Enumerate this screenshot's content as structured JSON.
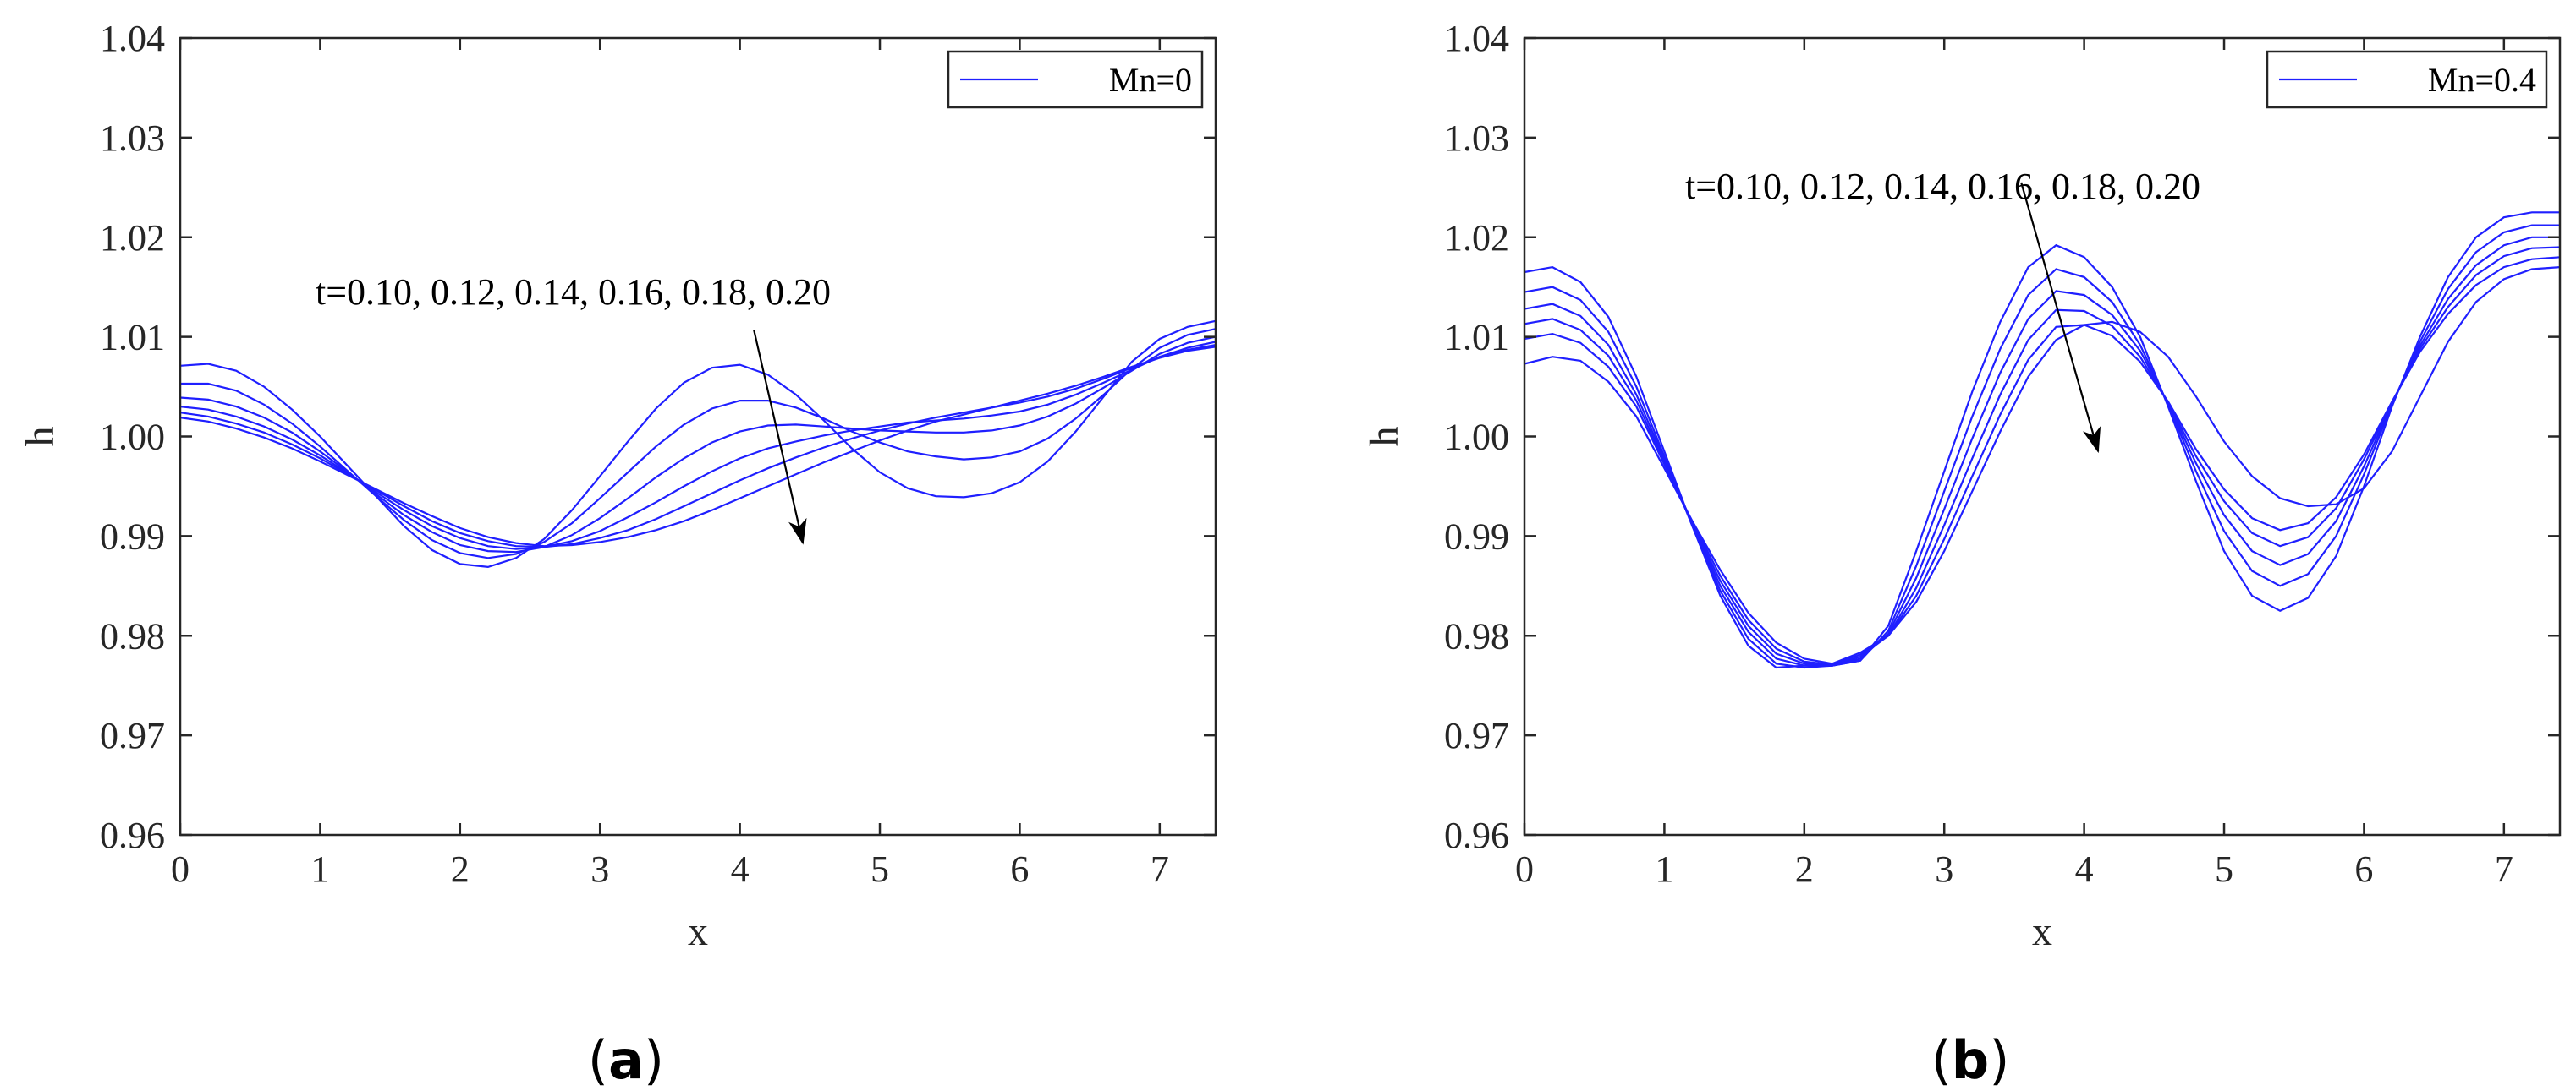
{
  "colors": {
    "line": "#1f1fff",
    "axis": "#262626",
    "annotation": "#000000"
  },
  "chart_data": [
    {
      "type": "line",
      "panel_label": "a",
      "title": "",
      "xlabel": "x",
      "ylabel": "h",
      "xlim": [
        0,
        7.4
      ],
      "ylim": [
        0.96,
        1.04
      ],
      "xticks": [
        "0",
        "1",
        "2",
        "3",
        "4",
        "5",
        "6",
        "7"
      ],
      "yticks": [
        "0.96",
        "0.97",
        "0.98",
        "0.99",
        "1.00",
        "1.01",
        "1.02",
        "1.03",
        "1.04"
      ],
      "legend": {
        "label": "Mn=0",
        "position": "top-right"
      },
      "annotation": {
        "text": "t=0.10, 0.12, 0.14, 0.16, 0.18, 0.20",
        "arrow_from": [
          4.1,
          1.0107
        ],
        "arrow_to": [
          4.45,
          0.9893
        ]
      },
      "x": [
        0,
        0.2,
        0.4,
        0.6,
        0.8,
        1.0,
        1.2,
        1.4,
        1.6,
        1.8,
        2.0,
        2.2,
        2.4,
        2.6,
        2.8,
        3.0,
        3.2,
        3.4,
        3.6,
        3.8,
        4.0,
        4.2,
        4.4,
        4.6,
        4.8,
        5.0,
        5.2,
        5.4,
        5.6,
        5.8,
        6.0,
        6.2,
        6.4,
        6.6,
        6.8,
        7.0,
        7.2,
        7.4
      ],
      "series": [
        {
          "name": "t=0.10",
          "values": [
            1.0071,
            1.0073,
            1.0066,
            1.005,
            1.0027,
            1.0,
            0.997,
            0.994,
            0.991,
            0.9886,
            0.9872,
            0.9869,
            0.9878,
            0.9897,
            0.9926,
            0.996,
            0.9995,
            1.0028,
            1.0054,
            1.0069,
            1.0072,
            1.0062,
            1.0042,
            1.0016,
            0.9988,
            0.9964,
            0.9948,
            0.994,
            0.9939,
            0.9943,
            0.9954,
            0.9975,
            1.0005,
            1.004,
            1.0075,
            1.0098,
            1.011,
            1.0116
          ]
        },
        {
          "name": "t=0.12",
          "values": [
            1.0053,
            1.0053,
            1.0046,
            1.0032,
            1.0013,
            0.999,
            0.9965,
            0.994,
            0.9916,
            0.9896,
            0.9883,
            0.9878,
            0.9882,
            0.9894,
            0.9913,
            0.9938,
            0.9964,
            0.999,
            1.0012,
            1.0028,
            1.0036,
            1.0036,
            1.0029,
            1.0018,
            1.0005,
            0.9994,
            0.9985,
            0.998,
            0.9977,
            0.9979,
            0.9985,
            0.9998,
            1.0018,
            1.0042,
            1.0068,
            1.0089,
            1.0102,
            1.0108
          ]
        },
        {
          "name": "t=0.14",
          "values": [
            1.0039,
            1.0037,
            1.003,
            1.0019,
            1.0004,
            0.9985,
            0.9964,
            0.9942,
            0.9921,
            0.9904,
            0.9891,
            0.9885,
            0.9884,
            0.9889,
            0.9901,
            0.9918,
            0.9938,
            0.9959,
            0.9978,
            0.9994,
            1.0005,
            1.0011,
            1.0012,
            1.001,
            1.0008,
            1.0006,
            1.0005,
            1.0004,
            1.0004,
            1.0006,
            1.0011,
            1.002,
            1.0033,
            1.0049,
            1.0066,
            1.0083,
            1.0094,
            1.01
          ]
        },
        {
          "name": "t=0.16",
          "values": [
            1.003,
            1.0027,
            1.002,
            1.001,
            0.9997,
            0.9981,
            0.9963,
            0.9944,
            0.9926,
            0.991,
            0.9898,
            0.989,
            0.9887,
            0.9889,
            0.9895,
            0.9905,
            0.9919,
            0.9934,
            0.995,
            0.9965,
            0.9978,
            0.9988,
            0.9995,
            1.0001,
            1.0006,
            1.001,
            1.0014,
            1.0016,
            1.0018,
            1.0021,
            1.0025,
            1.0032,
            1.0042,
            1.0054,
            1.0067,
            1.008,
            1.0089,
            1.0095
          ]
        },
        {
          "name": "t=0.18",
          "values": [
            1.0024,
            1.002,
            1.0013,
            1.0004,
            0.9992,
            0.9978,
            0.9962,
            0.9946,
            0.993,
            0.9915,
            0.9903,
            0.9895,
            0.989,
            0.9889,
            0.9892,
            0.9898,
            0.9906,
            0.9917,
            0.993,
            0.9943,
            0.9956,
            0.9968,
            0.9979,
            0.9989,
            0.9998,
            1.0006,
            1.0013,
            1.0019,
            1.0024,
            1.0029,
            1.0034,
            1.004,
            1.0048,
            1.0058,
            1.0069,
            1.0079,
            1.0087,
            1.0092
          ]
        },
        {
          "name": "t=0.20",
          "values": [
            1.0019,
            1.0015,
            1.0008,
            0.9999,
            0.9988,
            0.9975,
            0.9961,
            0.9947,
            0.9933,
            0.992,
            0.9908,
            0.9899,
            0.9893,
            0.989,
            0.9891,
            0.9894,
            0.9899,
            0.9906,
            0.9915,
            0.9926,
            0.9938,
            0.995,
            0.9962,
            0.9974,
            0.9985,
            0.9996,
            1.0006,
            1.0015,
            1.0022,
            1.0029,
            1.0036,
            1.0043,
            1.0051,
            1.006,
            1.007,
            1.0079,
            1.0086,
            1.009
          ]
        }
      ]
    },
    {
      "type": "line",
      "panel_label": "b",
      "title": "",
      "xlabel": "x",
      "ylabel": "h",
      "xlim": [
        0,
        7.4
      ],
      "ylim": [
        0.96,
        1.04
      ],
      "xticks": [
        "0",
        "1",
        "2",
        "3",
        "4",
        "5",
        "6",
        "7"
      ],
      "yticks": [
        "0.96",
        "0.97",
        "0.98",
        "0.99",
        "1.00",
        "1.01",
        "1.02",
        "1.03",
        "1.04"
      ],
      "legend": {
        "label": "Mn=0.4",
        "position": "top-right"
      },
      "annotation": {
        "text": "t=0.10, 0.12, 0.14, 0.16, 0.18, 0.20",
        "arrow_from": [
          3.55,
          1.0255
        ],
        "arrow_to": [
          4.1,
          0.9985
        ]
      },
      "x": [
        0,
        0.2,
        0.4,
        0.6,
        0.8,
        1.0,
        1.2,
        1.4,
        1.6,
        1.8,
        2.0,
        2.2,
        2.4,
        2.6,
        2.8,
        3.0,
        3.2,
        3.4,
        3.6,
        3.8,
        4.0,
        4.2,
        4.4,
        4.6,
        4.8,
        5.0,
        5.2,
        5.4,
        5.6,
        5.8,
        6.0,
        6.2,
        6.4,
        6.6,
        6.8,
        7.0,
        7.2,
        7.4
      ],
      "series": [
        {
          "name": "t=0.10",
          "values": [
            1.0165,
            1.017,
            1.0155,
            1.012,
            1.006,
            0.9985,
            0.991,
            0.984,
            0.979,
            0.9768,
            0.977,
            0.977,
            0.9775,
            0.981,
            0.9885,
            0.9965,
            1.0045,
            1.0115,
            1.017,
            1.0192,
            1.018,
            1.015,
            1.01,
            1.003,
            0.9955,
            0.9885,
            0.984,
            0.9825,
            0.9838,
            0.988,
            0.995,
            1.003,
            1.01,
            1.016,
            1.02,
            1.022,
            1.0225,
            1.0225
          ]
        },
        {
          "name": "t=0.12",
          "values": [
            1.0145,
            1.015,
            1.0137,
            1.0105,
            1.005,
            0.998,
            0.991,
            0.9845,
            0.9797,
            0.9772,
            0.9768,
            0.977,
            0.9775,
            0.9805,
            0.987,
            0.9945,
            1.002,
            1.0088,
            1.0142,
            1.0168,
            1.016,
            1.0135,
            1.0092,
            1.0032,
            0.9965,
            0.9905,
            0.9865,
            0.985,
            0.9862,
            0.99,
            0.9962,
            1.0032,
            1.0095,
            1.0148,
            1.0185,
            1.0205,
            1.0212,
            1.0212
          ]
        },
        {
          "name": "t=0.14",
          "values": [
            1.0128,
            1.0133,
            1.0121,
            1.0092,
            1.0042,
            0.9977,
            0.9911,
            0.985,
            0.9804,
            0.9777,
            0.977,
            0.977,
            0.9777,
            0.9802,
            0.9858,
            0.9927,
            0.9998,
            1.0064,
            1.0118,
            1.0146,
            1.0142,
            1.0122,
            1.0086,
            1.0033,
            0.9973,
            0.9921,
            0.9885,
            0.9871,
            0.9882,
            0.9915,
            0.997,
            1.0033,
            1.0091,
            1.0138,
            1.0172,
            1.0192,
            1.02,
            1.02
          ]
        },
        {
          "name": "t=0.16",
          "values": [
            1.0113,
            1.0118,
            1.0107,
            1.0081,
            1.0036,
            0.9974,
            0.9912,
            0.9855,
            0.981,
            0.9782,
            0.9772,
            0.977,
            0.9779,
            0.98,
            0.9848,
            0.9911,
            0.9978,
            1.0042,
            1.0097,
            1.0127,
            1.0126,
            1.0111,
            1.008,
            1.0034,
            0.998,
            0.9935,
            0.9903,
            0.989,
            0.9899,
            0.9928,
            0.9977,
            1.0034,
            1.0088,
            1.013,
            1.0162,
            1.0181,
            1.0189,
            1.019
          ]
        },
        {
          "name": "t=0.18",
          "values": [
            1.0098,
            1.0103,
            1.0094,
            1.007,
            1.003,
            0.9972,
            0.9914,
            0.986,
            0.9816,
            0.9787,
            0.9774,
            0.9771,
            0.9781,
            0.98,
            0.984,
            0.9897,
            0.996,
            1.0022,
            1.0077,
            1.011,
            1.0112,
            1.0101,
            1.0075,
            1.0035,
            0.9987,
            0.9947,
            0.9918,
            0.9906,
            0.9913,
            0.9939,
            0.9982,
            1.0035,
            1.0085,
            1.0123,
            1.0152,
            1.017,
            1.0178,
            1.018
          ]
        },
        {
          "name": "t=0.20",
          "values": [
            1.0073,
            1.008,
            1.0076,
            1.0055,
            1.002,
            0.9968,
            0.9915,
            0.9866,
            0.9823,
            0.9793,
            0.9777,
            0.9772,
            0.9783,
            0.98,
            0.9834,
            0.9885,
            0.9945,
            1.0005,
            1.006,
            1.0097,
            1.0112,
            1.0115,
            1.0105,
            1.008,
            1.004,
            0.9995,
            0.996,
            0.9938,
            0.993,
            0.9932,
            0.9948,
            0.9985,
            1.004,
            1.0095,
            1.0135,
            1.0158,
            1.0168,
            1.017
          ]
        }
      ]
    }
  ]
}
